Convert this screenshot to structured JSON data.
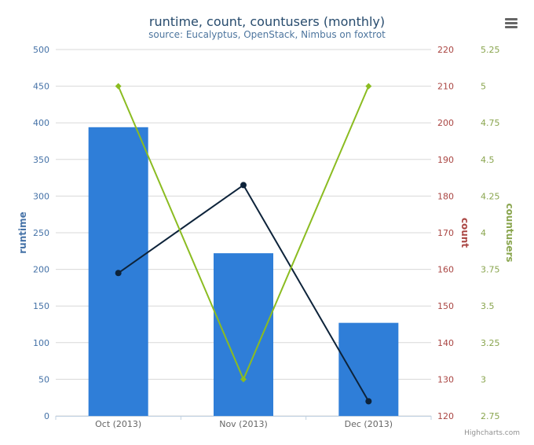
{
  "colors": {
    "runtime": "#2f7ed8",
    "count": "#0d233a",
    "countusers": "#8bbc21",
    "runtime_axis_label": "#4572A7",
    "count_axis_label": "#AA4643",
    "countusers_axis_label": "#89A54E",
    "title": "#274b6d",
    "subtitle": "#4d759e",
    "tick": "#666666"
  },
  "menu": {
    "icon": "hamburger-menu-icon"
  },
  "chart_data": {
    "type": "bar",
    "title": "runtime, count, countusers (monthly)",
    "subtitle": "source: Eucalyptus, OpenStack, Nimbus on foxtrot",
    "credits": "Highcharts.com",
    "categories": [
      "Oct (2013)",
      "Nov (2013)",
      "Dec (2013)"
    ],
    "grid": true,
    "legend": "none",
    "series": [
      {
        "name": "runtime",
        "type": "bar",
        "axis": "runtime",
        "values": [
          394,
          222,
          127
        ]
      },
      {
        "name": "count",
        "type": "line",
        "axis": "count",
        "values": [
          159,
          183,
          124
        ]
      },
      {
        "name": "countusers",
        "type": "line",
        "axis": "countusers",
        "values": [
          5,
          3,
          5
        ]
      }
    ],
    "axes": {
      "runtime": {
        "label": "runtime",
        "ylim": [
          0,
          500
        ],
        "ticks": [
          "0",
          "50",
          "100",
          "150",
          "200",
          "250",
          "300",
          "350",
          "400",
          "450",
          "500"
        ]
      },
      "count": {
        "label": "count",
        "ylim": [
          120,
          220
        ],
        "ticks": [
          "120",
          "130",
          "140",
          "150",
          "160",
          "170",
          "180",
          "190",
          "200",
          "210",
          "220"
        ]
      },
      "countusers": {
        "label": "countusers",
        "ylim": [
          2.75,
          5.25
        ],
        "ticks": [
          "2.75",
          "3",
          "3.25",
          "3.5",
          "3.75",
          "4",
          "4.25",
          "4.5",
          "4.75",
          "5",
          "5.25"
        ]
      }
    }
  }
}
